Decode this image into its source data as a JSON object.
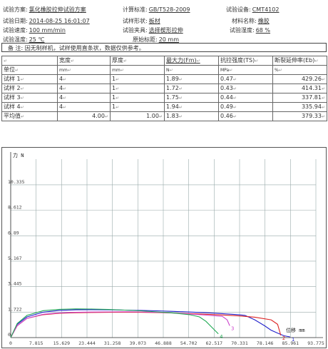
{
  "header": {
    "scheme": {
      "label": "试验方案:",
      "value": "氯化橡胶拉伸试验方案"
    },
    "standard": {
      "label": "计算标准:",
      "value": "GB/T528-2009"
    },
    "device": {
      "label": "试验设备:",
      "value": "CMT4102"
    },
    "date": {
      "label": "试验日期:",
      "value": "2014-08-25 16:01:07"
    },
    "shape": {
      "label": "试样形状:",
      "value": "板材"
    },
    "material": {
      "label": "材料名称:",
      "value": "橡胶"
    },
    "speed": {
      "label": "试验速度:",
      "value": "100 mm/min"
    },
    "fixture": {
      "label": "试验夹具:",
      "value": "选择楔形拉伸"
    },
    "humidity": {
      "label": "试验湿度:",
      "value": "68 %"
    },
    "temperature": {
      "label": "试验温度:",
      "value": "25 ℃"
    },
    "gauge": {
      "label": "原始标距:",
      "value": "20 mm"
    },
    "note": {
      "label": "备  注:",
      "value": "因无制样机，试样使用直条状，数据仅供参考。"
    }
  },
  "table": {
    "headers": [
      "",
      "宽度",
      "厚度",
      "最大力(Fm)",
      "抗拉强度(TS)",
      "断裂延伸率(Eb)"
    ],
    "units": [
      "单位",
      "mm",
      "mm",
      "N",
      "MPa",
      "%"
    ],
    "rows": [
      [
        "试样 1",
        "4",
        "1",
        "1.89",
        "0.47",
        "429.26"
      ],
      [
        "试样 2",
        "4",
        "1",
        "1.72",
        "0.43",
        "414.31"
      ],
      [
        "试样 3",
        "4",
        "1",
        "1.75",
        "0.44",
        "337.81"
      ],
      [
        "试样 4",
        "4",
        "1",
        "1.94",
        "0.49",
        "335.94"
      ],
      [
        "平均值",
        "4.00",
        "1.00",
        "1.83",
        "0.46",
        "379.33"
      ]
    ]
  },
  "chart_data": {
    "type": "line",
    "ylabel": "力 N",
    "xlabel": "位移 mm",
    "ylim": [
      0,
      12.07
    ],
    "xlim": [
      0,
      93.775
    ],
    "y_ticks": [
      "0",
      "1.722",
      "3.445",
      "5.167",
      "6.89",
      "8.612",
      "10.335"
    ],
    "y_tick_values": [
      0,
      1.722,
      3.445,
      5.167,
      6.89,
      8.612,
      10.335
    ],
    "x_ticks": [
      "0",
      "7.815",
      "15.629",
      "23.444",
      "31.258",
      "39.073",
      "46.888",
      "54.702",
      "62.517",
      "70.331",
      "78.146",
      "85.961",
      "93.775"
    ],
    "x_tick_values": [
      0,
      7.815,
      15.629,
      23.444,
      31.258,
      39.073,
      46.888,
      54.702,
      62.517,
      70.331,
      78.146,
      85.961,
      93.775
    ],
    "grid": true,
    "series": [
      {
        "name": "1",
        "color": "#2222cc",
        "x": [
          0,
          2,
          5,
          10,
          15,
          20,
          25,
          30,
          35,
          40,
          45,
          50,
          55,
          60,
          65,
          70,
          72,
          75,
          78,
          80,
          82,
          84,
          85.85
        ],
        "y": [
          0,
          0.9,
          1.4,
          1.72,
          1.84,
          1.88,
          1.89,
          1.88,
          1.86,
          1.84,
          1.81,
          1.77,
          1.73,
          1.68,
          1.62,
          1.55,
          1.5,
          1.2,
          0.8,
          0.5,
          0.3,
          0.12,
          0.05
        ]
      },
      {
        "name": "2",
        "color": "#dd2222",
        "x": [
          0,
          2,
          5,
          10,
          15,
          20,
          25,
          30,
          35,
          40,
          45,
          50,
          55,
          60,
          65,
          70,
          75,
          80,
          82,
          83.0
        ],
        "y": [
          0,
          0.8,
          1.3,
          1.55,
          1.64,
          1.68,
          1.7,
          1.71,
          1.72,
          1.71,
          1.69,
          1.66,
          1.62,
          1.58,
          1.53,
          1.47,
          1.38,
          1.2,
          0.9,
          0.15
        ]
      },
      {
        "name": "3",
        "color": "#cc44cc",
        "x": [
          0,
          2,
          5,
          10,
          15,
          20,
          25,
          30,
          35,
          40,
          45,
          50,
          55,
          60,
          65,
          66.5,
          67.3
        ],
        "y": [
          0,
          0.8,
          1.3,
          1.58,
          1.67,
          1.71,
          1.73,
          1.74,
          1.75,
          1.74,
          1.71,
          1.66,
          1.6,
          1.52,
          1.44,
          1.2,
          0.8
        ]
      },
      {
        "name": "4",
        "color": "#22aa55",
        "x": [
          0,
          2,
          5,
          10,
          15,
          20,
          25,
          30,
          35,
          40,
          45,
          50,
          55,
          58,
          60,
          62,
          63.8
        ],
        "y": [
          0,
          0.95,
          1.5,
          1.82,
          1.91,
          1.94,
          1.93,
          1.9,
          1.86,
          1.81,
          1.74,
          1.66,
          1.55,
          1.4,
          1.1,
          0.65,
          0.25
        ]
      }
    ]
  }
}
